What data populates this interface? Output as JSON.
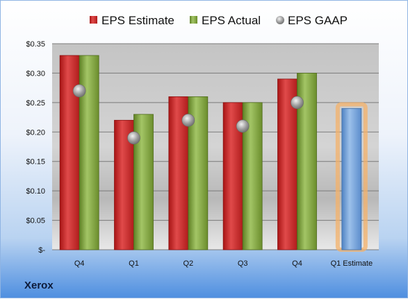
{
  "company": "Xerox",
  "chart_data": {
    "type": "bar",
    "categories": [
      "Q4",
      "Q1",
      "Q2",
      "Q3",
      "Q4",
      "Q1 Estimate"
    ],
    "series": [
      {
        "name": "EPS Estimate",
        "type": "bar",
        "color": "#cc2a2a",
        "values": [
          0.33,
          0.22,
          0.26,
          0.25,
          0.29,
          null
        ]
      },
      {
        "name": "EPS Actual",
        "type": "bar",
        "color": "#7fa23b",
        "values": [
          0.33,
          0.23,
          0.26,
          0.25,
          0.3,
          null
        ]
      },
      {
        "name": "EPS GAAP",
        "type": "scatter",
        "color": "#9aa0a6",
        "values": [
          0.27,
          0.19,
          0.22,
          0.21,
          0.25,
          null
        ]
      }
    ],
    "forecast": {
      "category": "Q1 Estimate",
      "value": 0.24,
      "color": "#6f9fd6",
      "highlight_color": "#f4b16a"
    },
    "yticks": [
      "$-",
      "$0.05",
      "$0.10",
      "$0.15",
      "$0.20",
      "$0.25",
      "$0.30",
      "$0.35"
    ],
    "ylim": [
      0,
      0.35
    ],
    "grid": true,
    "legend_position": "top"
  }
}
